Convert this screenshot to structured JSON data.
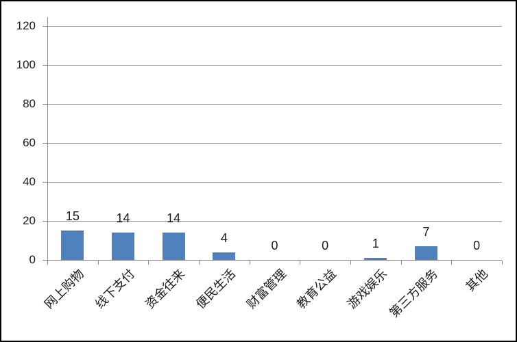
{
  "chart_data": {
    "type": "bar",
    "title": "",
    "xlabel": "",
    "ylabel": "",
    "categories": [
      "网上购物",
      "线下支付",
      "资金往来",
      "便民生活",
      "财富管理",
      "教育公益",
      "游戏娱乐",
      "第三方服务",
      "其他"
    ],
    "values": [
      15,
      14,
      14,
      4,
      0,
      0,
      1,
      7,
      0
    ],
    "data_labels": [
      "15",
      "14",
      "14",
      "4",
      "0",
      "0",
      "1",
      "7",
      "0"
    ],
    "y_ticks": [
      0,
      20,
      40,
      60,
      80,
      100,
      120
    ],
    "ylim": [
      0,
      120
    ],
    "grid": "horizontal-major",
    "legend": "none",
    "x_label_rotation_deg": 45,
    "colors": {
      "bar_fill": "#4F81BD",
      "gridline": "#9a9a9a",
      "axis": "#8c8c8c",
      "text": "#1a1a1a",
      "background": "#ffffff",
      "frame_border": "#000000"
    }
  }
}
